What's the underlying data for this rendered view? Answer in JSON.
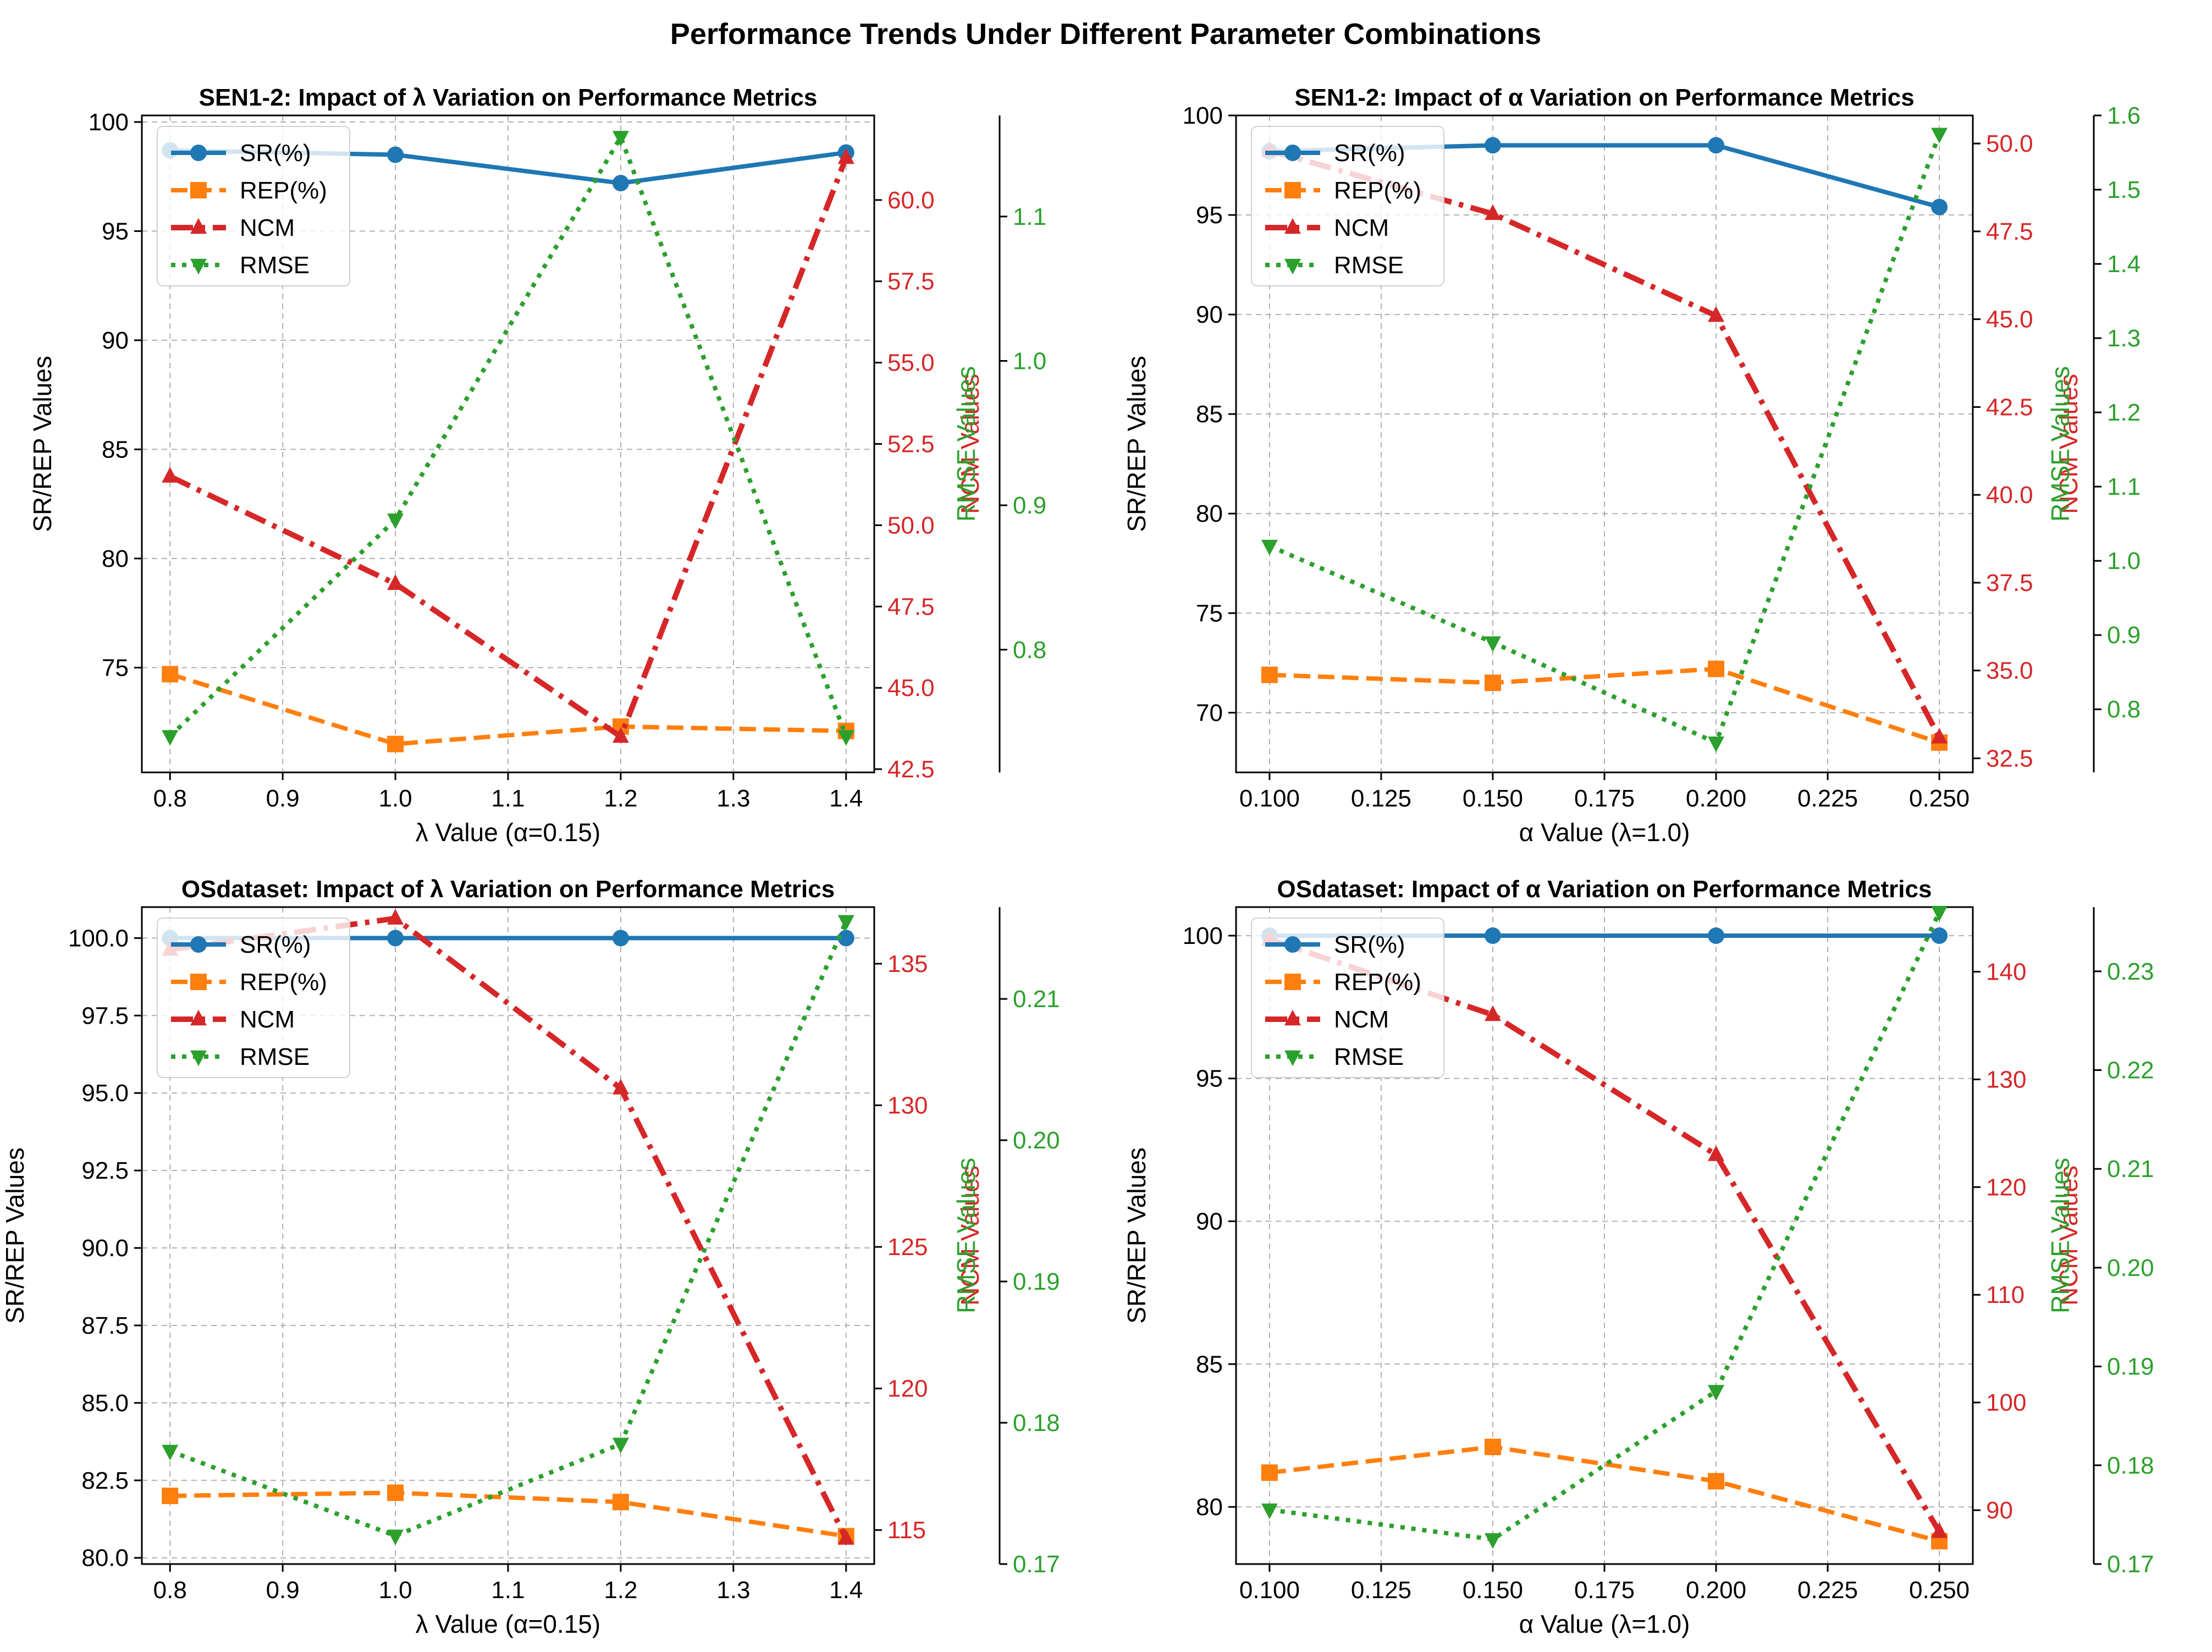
{
  "figure": {
    "title": "Performance Trends Under Different Parameter Combinations"
  },
  "colors": {
    "sr": "#1f77b4",
    "rep": "#ff7f0e",
    "ncm": "#d62728",
    "rmse": "#2ca02c",
    "grid": "#b0b0b0",
    "axis": "#000000"
  },
  "legend_labels": [
    "SR(%)",
    "REP(%)",
    "NCM",
    "RMSE"
  ],
  "chart_data": [
    {
      "type": "line",
      "title": "SEN1-2: Impact of λ Variation on Performance Metrics",
      "xlabel": "λ Value (α=0.15)",
      "ylabel": "SR/REP Values",
      "y2label": "NCM Values",
      "y3label": "RMSE Values",
      "legend_position": "top-left",
      "grid": true,
      "x": [
        0.8,
        1.0,
        1.2,
        1.4
      ],
      "xlim": [
        0.775,
        1.425
      ],
      "xticks": [
        "0.8",
        "0.9",
        "1.0",
        "1.1",
        "1.2",
        "1.3",
        "1.4"
      ],
      "ylim": [
        70.2,
        100.3
      ],
      "yticks": [
        "75",
        "80",
        "85",
        "90",
        "95",
        "100"
      ],
      "y2lim": [
        42.4,
        62.6
      ],
      "y2ticks": [
        "42.5",
        "45.0",
        "47.5",
        "50.0",
        "52.5",
        "55.0",
        "57.5",
        "60.0"
      ],
      "y3lim": [
        0.715,
        1.17
      ],
      "y3ticks": [
        "0.8",
        "0.9",
        "1.0",
        "1.1"
      ],
      "series": [
        {
          "name": "SR(%)",
          "axis": "left",
          "values": [
            98.7,
            98.5,
            97.2,
            98.6
          ]
        },
        {
          "name": "REP(%)",
          "axis": "left",
          "values": [
            74.7,
            71.5,
            72.3,
            72.1
          ]
        },
        {
          "name": "NCM",
          "axis": "ncm",
          "values": [
            51.5,
            48.2,
            43.5,
            61.3
          ]
        },
        {
          "name": "RMSE",
          "axis": "rmse",
          "values": [
            0.74,
            0.89,
            1.155,
            0.74
          ]
        }
      ]
    },
    {
      "type": "line",
      "title": "SEN1-2: Impact of α Variation on Performance Metrics",
      "xlabel": "α Value (λ=1.0)",
      "ylabel": "SR/REP Values",
      "y2label": "NCM Values",
      "y3label": "RMSE Values",
      "legend_position": "top-left",
      "grid": true,
      "x": [
        0.1,
        0.15,
        0.2,
        0.25
      ],
      "xlim": [
        0.0925,
        0.2575
      ],
      "xticks": [
        "0.100",
        "0.125",
        "0.150",
        "0.175",
        "0.200",
        "0.225",
        "0.250"
      ],
      "ylim": [
        67.0,
        100.0
      ],
      "yticks": [
        "70",
        "75",
        "80",
        "85",
        "90",
        "95",
        "100"
      ],
      "y2lim": [
        32.1,
        50.8
      ],
      "y2ticks": [
        "32.5",
        "35.0",
        "37.5",
        "40.0",
        "42.5",
        "45.0",
        "47.5",
        "50.0"
      ],
      "y3lim": [
        0.715,
        1.6
      ],
      "y3ticks": [
        "0.8",
        "0.9",
        "1.0",
        "1.1",
        "1.2",
        "1.3",
        "1.4",
        "1.5",
        "1.6"
      ],
      "series": [
        {
          "name": "SR(%)",
          "axis": "left",
          "values": [
            98.2,
            98.5,
            98.5,
            95.4
          ]
        },
        {
          "name": "REP(%)",
          "axis": "left",
          "values": [
            71.9,
            71.5,
            72.2,
            68.5
          ]
        },
        {
          "name": "NCM",
          "axis": "ncm",
          "values": [
            49.8,
            48.0,
            45.1,
            33.1
          ]
        },
        {
          "name": "RMSE",
          "axis": "rmse",
          "values": [
            1.02,
            0.89,
            0.755,
            1.575
          ]
        }
      ]
    },
    {
      "type": "line",
      "title": "OSdataset: Impact of λ Variation on Performance Metrics",
      "xlabel": "λ Value (α=0.15)",
      "ylabel": "SR/REP Values",
      "y2label": "NCM Values",
      "y3label": "RMSE Values",
      "legend_position": "top-left",
      "grid": true,
      "x": [
        0.8,
        1.0,
        1.2,
        1.4
      ],
      "xlim": [
        0.775,
        1.425
      ],
      "xticks": [
        "0.8",
        "0.9",
        "1.0",
        "1.1",
        "1.2",
        "1.3",
        "1.4"
      ],
      "ylim": [
        79.8,
        101.0
      ],
      "yticks": [
        "80.0",
        "82.5",
        "85.0",
        "87.5",
        "90.0",
        "92.5",
        "95.0",
        "97.5",
        "100.0"
      ],
      "y2lim": [
        113.8,
        137.0
      ],
      "y2ticks": [
        "115",
        "120",
        "125",
        "130",
        "135"
      ],
      "y3lim": [
        0.17,
        0.2165
      ],
      "y3ticks": [
        "0.17",
        "0.18",
        "0.19",
        "0.20",
        "0.21"
      ],
      "series": [
        {
          "name": "SR(%)",
          "axis": "left",
          "values": [
            100.0,
            100.0,
            100.0,
            100.0
          ]
        },
        {
          "name": "REP(%)",
          "axis": "left",
          "values": [
            82.0,
            82.1,
            81.8,
            80.7
          ]
        },
        {
          "name": "NCM",
          "axis": "ncm",
          "values": [
            135.5,
            136.6,
            130.6,
            114.7
          ]
        },
        {
          "name": "RMSE",
          "axis": "rmse",
          "values": [
            0.178,
            0.172,
            0.1785,
            0.2155
          ]
        }
      ]
    },
    {
      "type": "line",
      "title": "OSdataset: Impact of α Variation on Performance Metrics",
      "xlabel": "α Value (λ=1.0)",
      "ylabel": "SR/REP Values",
      "y2label": "NCM Values",
      "y3label": "RMSE Values",
      "legend_position": "top-left",
      "grid": true,
      "x": [
        0.1,
        0.15,
        0.2,
        0.25
      ],
      "xlim": [
        0.0925,
        0.2575
      ],
      "xticks": [
        "0.100",
        "0.125",
        "0.150",
        "0.175",
        "0.200",
        "0.225",
        "0.250"
      ],
      "ylim": [
        78.0,
        101.0
      ],
      "yticks": [
        "80",
        "85",
        "90",
        "95",
        "100"
      ],
      "y2lim": [
        85.0,
        146.0
      ],
      "y2ticks": [
        "90",
        "100",
        "110",
        "120",
        "130",
        "140"
      ],
      "y3lim": [
        0.17,
        0.2365
      ],
      "y3ticks": [
        "0.17",
        "0.18",
        "0.19",
        "0.20",
        "0.21",
        "0.22",
        "0.23"
      ],
      "series": [
        {
          "name": "SR(%)",
          "axis": "left",
          "values": [
            100.0,
            100.0,
            100.0,
            100.0
          ]
        },
        {
          "name": "REP(%)",
          "axis": "left",
          "values": [
            81.2,
            82.1,
            80.9,
            78.8
          ]
        },
        {
          "name": "NCM",
          "axis": "ncm",
          "values": [
            143.0,
            136.0,
            123.0,
            88.0
          ]
        },
        {
          "name": "RMSE",
          "axis": "rmse",
          "values": [
            0.1755,
            0.1725,
            0.1875,
            0.236
          ]
        }
      ]
    }
  ]
}
